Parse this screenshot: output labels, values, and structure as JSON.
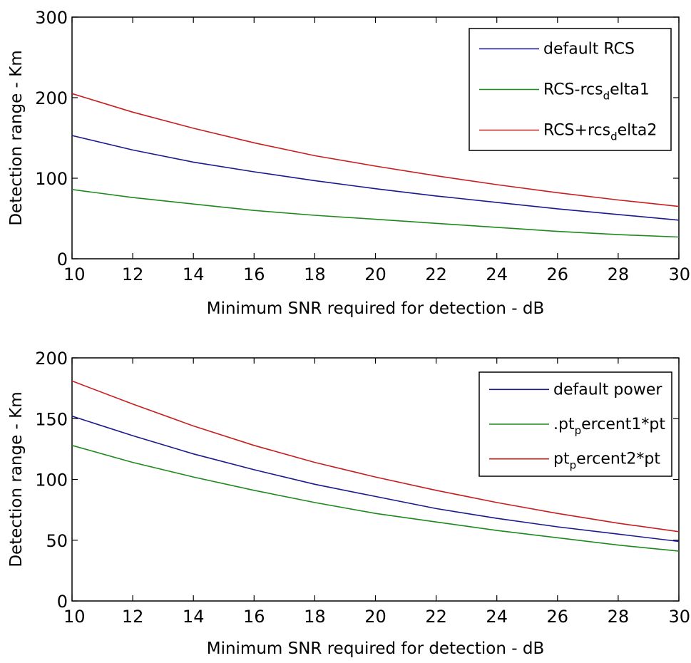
{
  "chart_data": [
    {
      "type": "line",
      "xlabel": "Minimum SNR required for detection - dB",
      "ylabel": "Detection range - Km",
      "xlim": [
        10,
        30
      ],
      "ylim": [
        0,
        300
      ],
      "xticks": [
        "10",
        "12",
        "14",
        "16",
        "18",
        "20",
        "22",
        "24",
        "26",
        "28",
        "30"
      ],
      "yticks": [
        "0",
        "100",
        "200",
        "300"
      ],
      "legend_position": "top-right",
      "x": [
        10,
        12,
        14,
        16,
        18,
        20,
        22,
        24,
        26,
        28,
        30
      ],
      "series": [
        {
          "name": "default RCS",
          "name_main": "default RCS",
          "name_sub": "",
          "name_tail": "",
          "color": "#1a1a8c",
          "values": [
            153,
            135,
            120,
            108,
            97,
            87,
            78,
            70,
            62,
            55,
            48
          ]
        },
        {
          "name": "RCS-rcs_delta1",
          "name_main": "RCS-rcs",
          "name_sub": "d",
          "name_tail": "elta1",
          "color": "#1e8a1e",
          "values": [
            86,
            76,
            68,
            60,
            54,
            49,
            44,
            39,
            34,
            30,
            27
          ]
        },
        {
          "name": "RCS+rcs_delta2",
          "name_main": "RCS+rcs",
          "name_sub": "d",
          "name_tail": "elta2",
          "color": "#c81e1e",
          "values": [
            205,
            182,
            162,
            144,
            128,
            115,
            103,
            92,
            82,
            73,
            65
          ]
        }
      ]
    },
    {
      "type": "line",
      "xlabel": "Minimum SNR required for detection - dB",
      "ylabel": "Detection range - Km",
      "xlim": [
        10,
        30
      ],
      "ylim": [
        0,
        200
      ],
      "xticks": [
        "10",
        "12",
        "14",
        "16",
        "18",
        "20",
        "22",
        "24",
        "26",
        "28",
        "30"
      ],
      "yticks": [
        "0",
        "50",
        "100",
        "150",
        "200"
      ],
      "legend_position": "top-right",
      "x": [
        10,
        12,
        14,
        16,
        18,
        20,
        22,
        24,
        26,
        28,
        30
      ],
      "series": [
        {
          "name": "default power",
          "name_main": "default power",
          "name_sub": "",
          "name_tail": "",
          "color": "#1a1a8c",
          "values": [
            152,
            136,
            121,
            108,
            96,
            86,
            76,
            68,
            61,
            55,
            49
          ]
        },
        {
          "name": ".pt_percent1*pt",
          "name_main": ".pt",
          "name_sub": "p",
          "name_tail": "ercent1*pt",
          "color": "#1e8a1e",
          "values": [
            128,
            114,
            102,
            91,
            81,
            72,
            65,
            58,
            52,
            46,
            41
          ]
        },
        {
          "name": "pt_percent2*pt",
          "name_main": "pt",
          "name_sub": "p",
          "name_tail": "ercent2*pt",
          "color": "#c81e1e",
          "values": [
            181,
            162,
            144,
            128,
            114,
            102,
            91,
            81,
            72,
            64,
            57
          ]
        }
      ]
    }
  ]
}
